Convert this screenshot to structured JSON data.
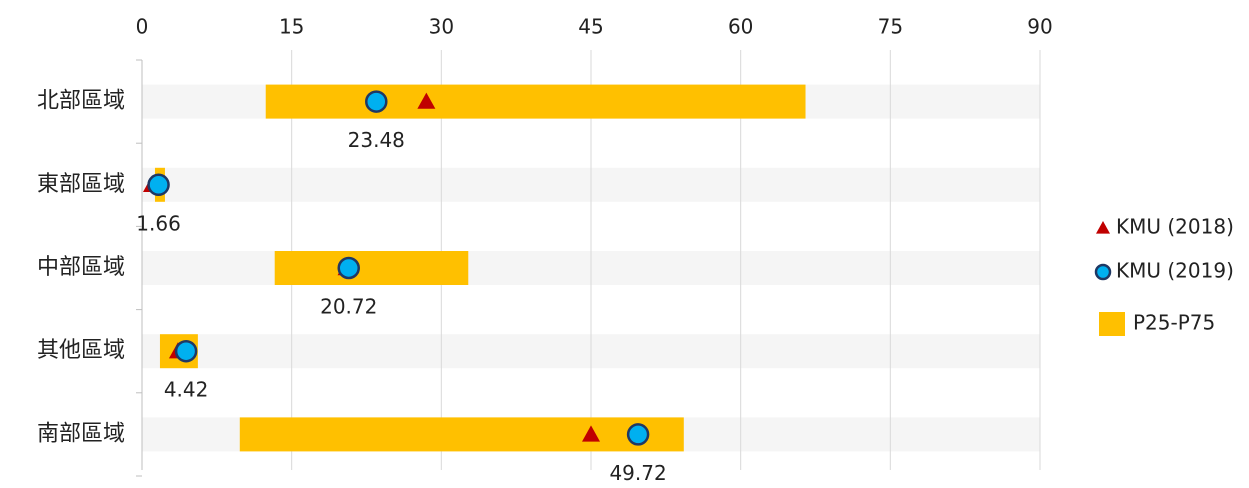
{
  "chart_data": {
    "type": "range-dot",
    "categories": [
      "北部區域",
      "東部區域",
      "中部區域",
      "其他區域",
      "南部區域"
    ],
    "series": [
      {
        "name": "KMU (2018)",
        "marker": "triangle",
        "color": "#c00000",
        "values": [
          28.5,
          1.0,
          20.5,
          3.6,
          45.0
        ]
      },
      {
        "name": "KMU (2019)",
        "marker": "circle",
        "color": "#00b0f0",
        "values": [
          23.48,
          1.66,
          20.72,
          4.42,
          49.72
        ],
        "data_labels": true
      },
      {
        "name": "P25-P75",
        "marker": "range",
        "color": "#ffc000",
        "low": [
          12.4,
          1.3,
          13.3,
          1.8,
          9.8
        ],
        "high": [
          66.5,
          2.3,
          32.7,
          5.6,
          54.3
        ]
      }
    ],
    "xlim": [
      0,
      90
    ],
    "xticks": [
      0,
      15,
      30,
      45,
      60,
      75,
      90
    ],
    "grid": true,
    "legend": "right"
  }
}
